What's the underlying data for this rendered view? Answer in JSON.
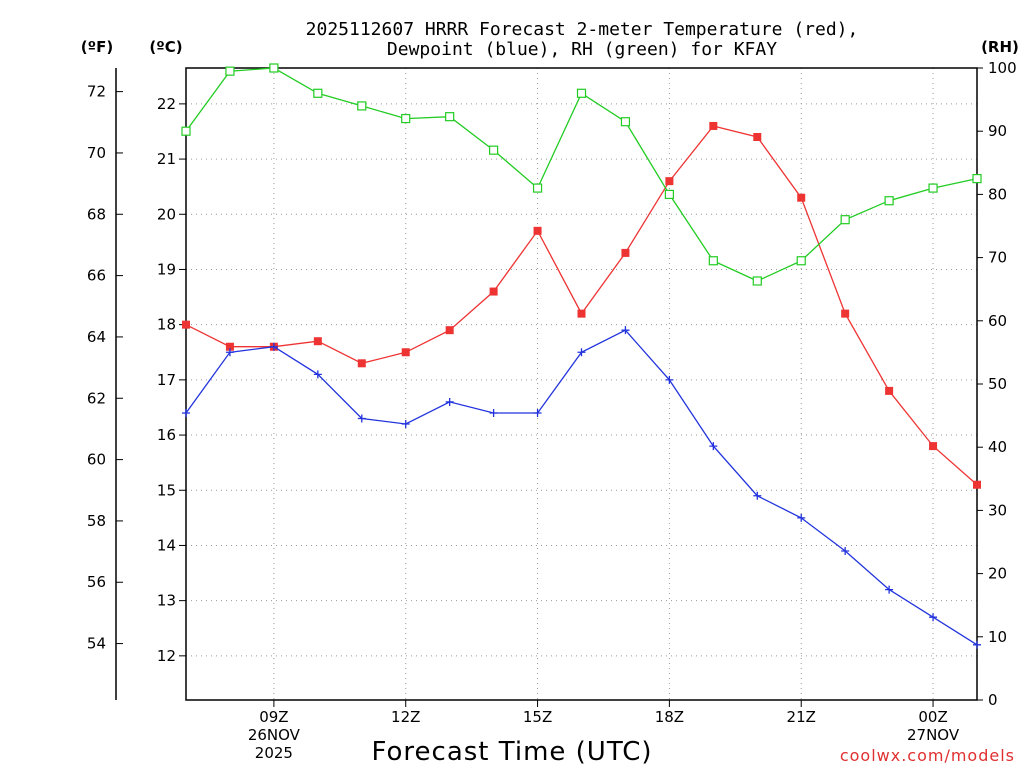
{
  "chart_data": {
    "type": "line",
    "title_line1": "2025112607 HRRR Forecast 2-meter Temperature (red),",
    "title_line2": "Dewpoint (blue), RH (green) for KFAY",
    "xlabel": "Forecast Time (UTC)",
    "credit": "coolwx.com/models",
    "units": {
      "fahrenheit": "(ºF)",
      "celsius": "(ºC)",
      "rh": "(RH)"
    },
    "x_hours": [
      7,
      8,
      9,
      10,
      11,
      12,
      13,
      14,
      15,
      16,
      17,
      18,
      19,
      20,
      21,
      22,
      23,
      24,
      25
    ],
    "x_range": [
      7,
      25
    ],
    "x_ticks": [
      {
        "hour": 9,
        "lines": [
          "09Z",
          "26NOV",
          "2025"
        ]
      },
      {
        "hour": 12,
        "lines": [
          "12Z"
        ]
      },
      {
        "hour": 15,
        "lines": [
          "15Z"
        ]
      },
      {
        "hour": 18,
        "lines": [
          "18Z"
        ]
      },
      {
        "hour": 21,
        "lines": [
          "21Z"
        ]
      },
      {
        "hour": 24,
        "lines": [
          "00Z",
          "27NOV"
        ]
      }
    ],
    "c_range": [
      11.2,
      22.65
    ],
    "c_ticks": [
      "12",
      "13",
      "14",
      "15",
      "16",
      "17",
      "18",
      "19",
      "20",
      "21",
      "22"
    ],
    "f_ticks": [
      "54",
      "56",
      "58",
      "60",
      "62",
      "64",
      "66",
      "68",
      "70",
      "72"
    ],
    "rh_range": [
      0,
      100
    ],
    "rh_ticks": [
      "0",
      "10",
      "20",
      "30",
      "40",
      "50",
      "60",
      "70",
      "80",
      "90",
      "100"
    ],
    "series": [
      {
        "name": "Temperature",
        "unit": "C",
        "color": "#ee3333",
        "marker": "filled-square",
        "values": [
          18.0,
          17.6,
          17.6,
          17.7,
          17.3,
          17.5,
          17.9,
          18.6,
          19.7,
          18.2,
          19.3,
          20.6,
          21.6,
          21.4,
          20.3,
          18.2,
          16.8,
          15.8,
          15.1
        ]
      },
      {
        "name": "Dewpoint",
        "unit": "C",
        "color": "#2233dd",
        "marker": "plus",
        "values": [
          16.4,
          17.5,
          17.6,
          17.1,
          16.3,
          16.2,
          16.6,
          16.4,
          16.4,
          17.5,
          17.9,
          17.0,
          15.8,
          14.9,
          14.5,
          13.9,
          13.2,
          12.7,
          12.2
        ]
      },
      {
        "name": "RH",
        "unit": "%",
        "color": "#22cc22",
        "marker": "open-square",
        "values": [
          90,
          99.5,
          100,
          96,
          94,
          92,
          92.3,
          87,
          81,
          96,
          91.5,
          80,
          69.5,
          66.3,
          69.5,
          76,
          79,
          81,
          82.5
        ]
      }
    ]
  }
}
